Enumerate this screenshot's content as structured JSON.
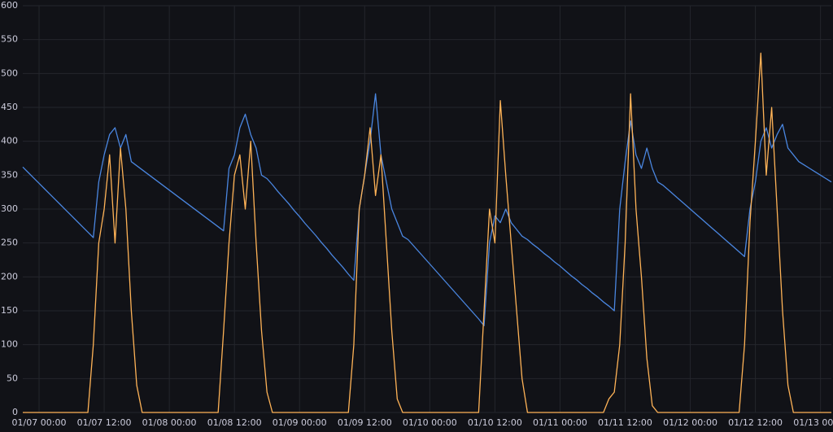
{
  "chart_data": {
    "type": "line",
    "categories": [
      null,
      null,
      null,
      "01/07 00:00",
      null,
      null,
      null,
      null,
      null,
      null,
      null,
      null,
      null,
      null,
      null,
      "01/07 12:00",
      null,
      null,
      null,
      null,
      null,
      null,
      null,
      null,
      null,
      null,
      null,
      "01/08 00:00",
      null,
      null,
      null,
      null,
      null,
      null,
      null,
      null,
      null,
      null,
      null,
      "01/08 12:00",
      null,
      null,
      null,
      null,
      null,
      null,
      null,
      null,
      null,
      null,
      null,
      "01/09 00:00",
      null,
      null,
      null,
      null,
      null,
      null,
      null,
      null,
      null,
      null,
      null,
      "01/09 12:00",
      null,
      null,
      null,
      null,
      null,
      null,
      null,
      null,
      null,
      null,
      null,
      "01/10 00:00",
      null,
      null,
      null,
      null,
      null,
      null,
      null,
      null,
      null,
      null,
      null,
      "01/10 12:00",
      null,
      null,
      null,
      null,
      null,
      null,
      null,
      null,
      null,
      null,
      null,
      "01/11 00:00",
      null,
      null,
      null,
      null,
      null,
      null,
      null,
      null,
      null,
      null,
      null,
      "01/11 12:00",
      null,
      null,
      null,
      null,
      null,
      null,
      null,
      null,
      null,
      null,
      null,
      "01/12 00:00",
      null,
      null,
      null,
      null,
      null,
      null,
      null,
      null,
      null,
      null,
      null,
      "01/12 12:00",
      null,
      null,
      null,
      null,
      null,
      null,
      null,
      null,
      null,
      null,
      null,
      "01/13 00:00",
      null,
      null
    ],
    "series": [
      {
        "color": "#4a86e0",
        "values": [
          362,
          354,
          346,
          338,
          330,
          322,
          314,
          306,
          298,
          290,
          282,
          274,
          266,
          258,
          340,
          380,
          410,
          420,
          390,
          410,
          370,
          364,
          358,
          352,
          346,
          340,
          334,
          328,
          322,
          316,
          310,
          304,
          298,
          292,
          286,
          280,
          274,
          268,
          360,
          380,
          420,
          440,
          410,
          390,
          350,
          345,
          336,
          326,
          317,
          308,
          298,
          289,
          279,
          270,
          261,
          251,
          242,
          232,
          223,
          214,
          204,
          195,
          300,
          350,
          400,
          470,
          380,
          340,
          300,
          280,
          260,
          255,
          246,
          237,
          228,
          219,
          210,
          201,
          192,
          183,
          174,
          165,
          156,
          147,
          138,
          128,
          250,
          290,
          280,
          300,
          280,
          270,
          260,
          255,
          248,
          242,
          235,
          229,
          222,
          216,
          209,
          202,
          196,
          189,
          183,
          176,
          170,
          163,
          157,
          150,
          300,
          370,
          430,
          380,
          360,
          390,
          360,
          340,
          335,
          328,
          321,
          314,
          307,
          300,
          293,
          286,
          279,
          272,
          265,
          258,
          251,
          244,
          237,
          230,
          300,
          340,
          400,
          420,
          390,
          410,
          425,
          390,
          380,
          370,
          365,
          360,
          355,
          350,
          345,
          340
        ]
      },
      {
        "color": "#ffb357",
        "values": [
          0,
          0,
          0,
          0,
          0,
          0,
          0,
          0,
          0,
          0,
          0,
          0,
          0,
          100,
          250,
          300,
          380,
          250,
          390,
          300,
          150,
          40,
          0,
          0,
          0,
          0,
          0,
          0,
          0,
          0,
          0,
          0,
          0,
          0,
          0,
          0,
          0,
          120,
          250,
          350,
          380,
          300,
          400,
          250,
          120,
          30,
          0,
          0,
          0,
          0,
          0,
          0,
          0,
          0,
          0,
          0,
          0,
          0,
          0,
          0,
          0,
          100,
          300,
          350,
          420,
          320,
          380,
          250,
          120,
          20,
          0,
          0,
          0,
          0,
          0,
          0,
          0,
          0,
          0,
          0,
          0,
          0,
          0,
          0,
          0,
          150,
          300,
          250,
          460,
          350,
          250,
          150,
          50,
          0,
          0,
          0,
          0,
          0,
          0,
          0,
          0,
          0,
          0,
          0,
          0,
          0,
          0,
          0,
          20,
          30,
          100,
          250,
          470,
          300,
          200,
          80,
          10,
          0,
          0,
          0,
          0,
          0,
          0,
          0,
          0,
          0,
          0,
          0,
          0,
          0,
          0,
          0,
          0,
          100,
          280,
          400,
          530,
          350,
          450,
          300,
          150,
          40,
          0,
          0,
          0,
          0,
          0,
          0,
          0,
          0
        ]
      }
    ],
    "ylim": [
      0,
      600
    ],
    "yticks": [
      0,
      50,
      100,
      150,
      200,
      250,
      300,
      350,
      400,
      450,
      500,
      550,
      600
    ],
    "grid": true
  }
}
